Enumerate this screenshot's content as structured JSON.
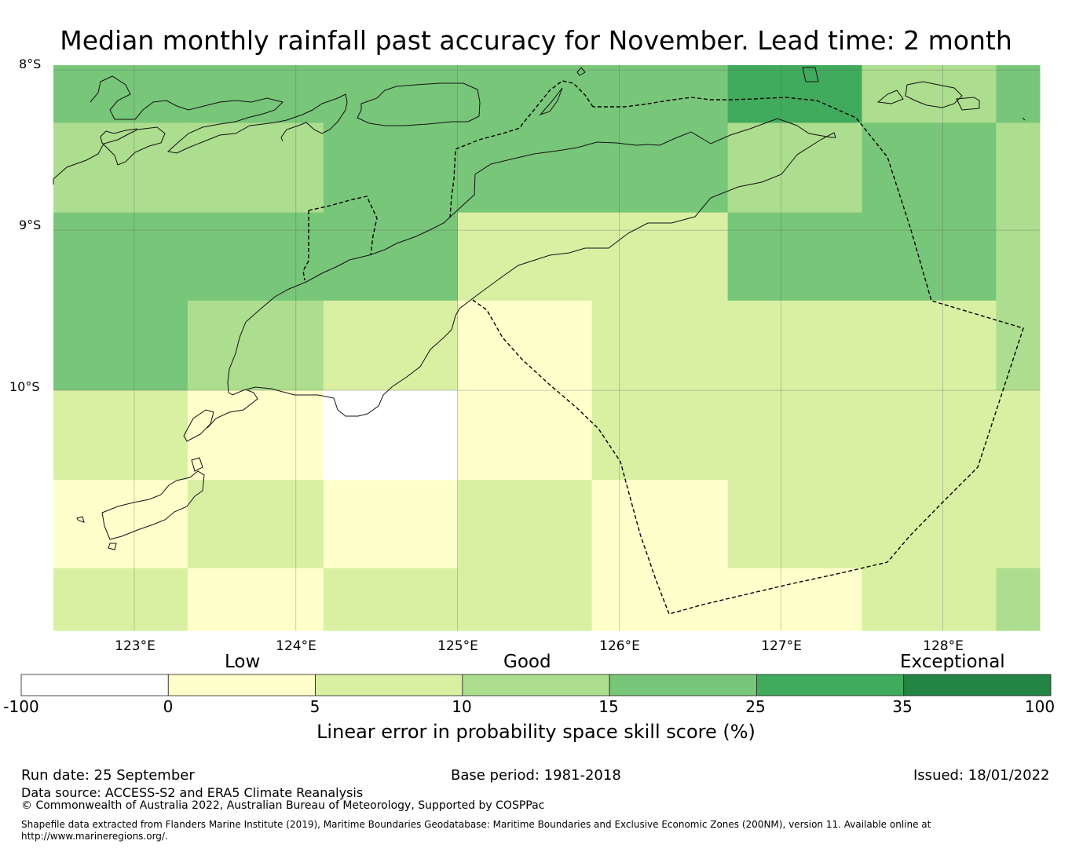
{
  "title": "Median monthly rainfall past accuracy for November. Lead time: 2 month",
  "map": {
    "lat_labels": [
      "8°S",
      "9°S",
      "10°S"
    ],
    "lon_labels": [
      "123°E",
      "124°E",
      "125°E",
      "126°E",
      "127°E",
      "128°E"
    ],
    "bounds": {
      "lon_min": 122.5,
      "lon_max": 128.6,
      "lat_max": -7.97,
      "lat_min": -11.5
    },
    "grid_cell_deg": 0.833,
    "grid_rows": [
      [
        "c15",
        "c15",
        "c15",
        "c15",
        "c15",
        "c25",
        "c10",
        "c15"
      ],
      [
        "c10",
        "c10",
        "c15",
        "c15",
        "c15",
        "c10",
        "c15",
        "c10"
      ],
      [
        "c15",
        "c15",
        "c15",
        "c5",
        "c5",
        "c15",
        "c15",
        "c10"
      ],
      [
        "c15",
        "c10",
        "c5",
        "c0",
        "c5",
        "c5",
        "c5",
        "c10"
      ],
      [
        "c5",
        "c0",
        "nan",
        "c0",
        "c5",
        "c5",
        "c5",
        "c5"
      ],
      [
        "c0",
        "c5",
        "c0",
        "c5",
        "c0",
        "c5",
        "c5",
        "c5"
      ],
      [
        "c5",
        "c0",
        "c5",
        "c5",
        "c0",
        "c0",
        "c5",
        "c10"
      ]
    ]
  },
  "legend": {
    "categories": [
      "Low",
      "Good",
      "Exceptional"
    ],
    "ticks": [
      "-100",
      "0",
      "5",
      "10",
      "15",
      "25",
      "35",
      "100"
    ],
    "title": "Linear error in probability space skill score (%)",
    "colors": {
      "nan": "#ffffff",
      "c0": "#ffffcc",
      "c5": "#d9f0a3",
      "c10": "#addd8e",
      "c15": "#78c679",
      "c25": "#41ab5d",
      "c35": "#238443"
    },
    "order": [
      "nan",
      "c0",
      "c5",
      "c10",
      "c15",
      "c25",
      "c35"
    ]
  },
  "footer": {
    "run_date": "Run date: 25 September",
    "base_period": "Base period: 1981-2018",
    "issued": "Issued: 18/01/2022",
    "data_source": "Data source: ACCESS-S2 and ERA5 Climate Reanalysis",
    "copyright": "© Commonwealth of Australia 2022, Australian Bureau of Meteorology, Supported by COSPPac",
    "shapefile_line1": "Shapefile data extracted from Flanders Marine Institute (2019), Maritime Boundaries Geodatabase: Maritime Boundaries and Exclusive Economic Zones (200NM), version 11. Available online at",
    "shapefile_line2": "http://www.marineregions.org/."
  }
}
